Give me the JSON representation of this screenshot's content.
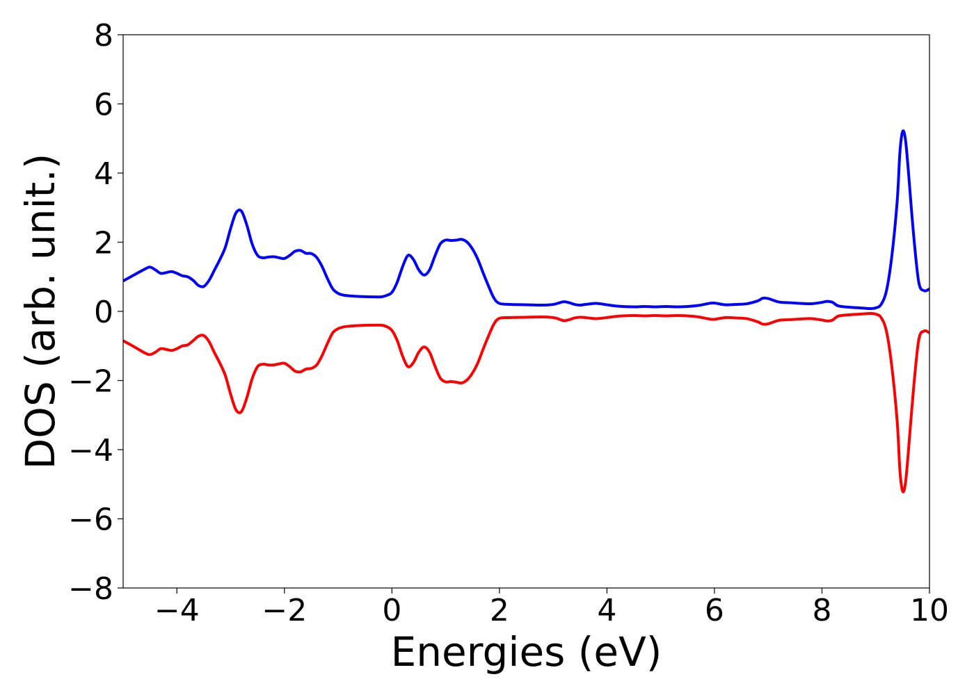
{
  "chart_data": {
    "type": "line",
    "title": "",
    "xlabel": "Energies (eV)",
    "ylabel": "DOS (arb. unit.)",
    "xlim": [
      -5,
      10
    ],
    "ylim": [
      -8,
      8
    ],
    "xticks": [
      -4,
      -2,
      0,
      2,
      4,
      6,
      8,
      10
    ],
    "xtick_labels": [
      "−4",
      "−2",
      "0",
      "2",
      "4",
      "6",
      "8",
      "10"
    ],
    "yticks": [
      -8,
      -6,
      -4,
      -2,
      0,
      2,
      4,
      6,
      8
    ],
    "ytick_labels": [
      "−8",
      "−6",
      "−4",
      "−2",
      "0",
      "2",
      "4",
      "6",
      "8"
    ],
    "grid": false,
    "legend": "none",
    "series": [
      {
        "color": "#0000ff",
        "x": [
          -5.0,
          -4.8,
          -4.6,
          -4.5,
          -4.4,
          -4.3,
          -4.2,
          -4.1,
          -4.0,
          -3.9,
          -3.8,
          -3.7,
          -3.6,
          -3.5,
          -3.4,
          -3.3,
          -3.2,
          -3.1,
          -3.0,
          -2.9,
          -2.8,
          -2.7,
          -2.6,
          -2.5,
          -2.4,
          -2.3,
          -2.2,
          -2.1,
          -2.0,
          -1.9,
          -1.8,
          -1.7,
          -1.6,
          -1.5,
          -1.4,
          -1.3,
          -1.2,
          -1.1,
          -1.0,
          -0.9,
          -0.8,
          -0.6,
          -0.4,
          -0.2,
          -0.1,
          0.0,
          0.1,
          0.2,
          0.3,
          0.4,
          0.5,
          0.6,
          0.7,
          0.8,
          0.9,
          1.0,
          1.1,
          1.2,
          1.3,
          1.4,
          1.5,
          1.6,
          1.7,
          1.8,
          1.9,
          2.0,
          2.2,
          2.5,
          2.8,
          3.0,
          3.1,
          3.2,
          3.3,
          3.4,
          3.5,
          3.6,
          3.8,
          4.0,
          4.2,
          4.5,
          4.7,
          4.9,
          5.1,
          5.3,
          5.5,
          5.7,
          5.9,
          6.0,
          6.2,
          6.4,
          6.6,
          6.8,
          6.9,
          7.0,
          7.2,
          7.4,
          7.6,
          7.8,
          8.0,
          8.1,
          8.2,
          8.3,
          8.5,
          8.7,
          8.8,
          8.9,
          9.0,
          9.1,
          9.2,
          9.3,
          9.4,
          9.45,
          9.5,
          9.55,
          9.6,
          9.7,
          9.8,
          9.9,
          10.0
        ],
        "y": [
          0.88,
          1.05,
          1.22,
          1.28,
          1.2,
          1.1,
          1.12,
          1.15,
          1.1,
          1.03,
          1.0,
          0.9,
          0.75,
          0.72,
          0.9,
          1.2,
          1.5,
          1.85,
          2.4,
          2.85,
          2.9,
          2.5,
          1.95,
          1.62,
          1.55,
          1.57,
          1.58,
          1.55,
          1.53,
          1.62,
          1.74,
          1.76,
          1.68,
          1.67,
          1.56,
          1.3,
          0.95,
          0.65,
          0.52,
          0.47,
          0.45,
          0.43,
          0.42,
          0.42,
          0.46,
          0.55,
          0.85,
          1.3,
          1.62,
          1.5,
          1.2,
          1.05,
          1.2,
          1.6,
          1.95,
          2.06,
          2.05,
          2.06,
          2.08,
          2.0,
          1.8,
          1.5,
          1.1,
          0.72,
          0.38,
          0.23,
          0.2,
          0.19,
          0.18,
          0.2,
          0.24,
          0.28,
          0.25,
          0.2,
          0.18,
          0.2,
          0.23,
          0.19,
          0.15,
          0.13,
          0.14,
          0.13,
          0.14,
          0.13,
          0.14,
          0.17,
          0.23,
          0.24,
          0.19,
          0.2,
          0.22,
          0.3,
          0.38,
          0.37,
          0.27,
          0.25,
          0.23,
          0.22,
          0.26,
          0.29,
          0.26,
          0.16,
          0.12,
          0.1,
          0.09,
          0.08,
          0.1,
          0.2,
          0.6,
          1.6,
          3.2,
          4.6,
          5.2,
          5.0,
          4.2,
          2.3,
          0.85,
          0.6,
          0.65
        ]
      },
      {
        "color": "#ff0000",
        "x": [
          -5.0,
          -4.8,
          -4.6,
          -4.5,
          -4.4,
          -4.3,
          -4.2,
          -4.1,
          -4.0,
          -3.9,
          -3.8,
          -3.7,
          -3.6,
          -3.5,
          -3.4,
          -3.3,
          -3.2,
          -3.1,
          -3.0,
          -2.9,
          -2.8,
          -2.7,
          -2.6,
          -2.5,
          -2.4,
          -2.3,
          -2.2,
          -2.1,
          -2.0,
          -1.9,
          -1.8,
          -1.7,
          -1.6,
          -1.5,
          -1.4,
          -1.3,
          -1.2,
          -1.1,
          -1.0,
          -0.9,
          -0.8,
          -0.6,
          -0.4,
          -0.2,
          -0.1,
          0.0,
          0.1,
          0.2,
          0.3,
          0.4,
          0.5,
          0.6,
          0.7,
          0.8,
          0.9,
          1.0,
          1.1,
          1.2,
          1.3,
          1.4,
          1.5,
          1.6,
          1.7,
          1.8,
          1.9,
          2.0,
          2.2,
          2.5,
          2.8,
          3.0,
          3.1,
          3.2,
          3.3,
          3.4,
          3.5,
          3.6,
          3.8,
          4.0,
          4.2,
          4.5,
          4.7,
          4.9,
          5.1,
          5.3,
          5.5,
          5.7,
          5.9,
          6.0,
          6.2,
          6.4,
          6.6,
          6.8,
          6.9,
          7.0,
          7.2,
          7.4,
          7.6,
          7.8,
          8.0,
          8.1,
          8.2,
          8.3,
          8.5,
          8.7,
          8.8,
          8.9,
          9.0,
          9.1,
          9.2,
          9.3,
          9.4,
          9.45,
          9.5,
          9.55,
          9.6,
          9.7,
          9.8,
          9.9,
          10.0
        ],
        "y": [
          -0.85,
          -1.02,
          -1.2,
          -1.25,
          -1.18,
          -1.08,
          -1.1,
          -1.13,
          -1.08,
          -1.0,
          -0.97,
          -0.85,
          -0.72,
          -0.7,
          -0.88,
          -1.2,
          -1.5,
          -1.85,
          -2.4,
          -2.85,
          -2.9,
          -2.5,
          -1.95,
          -1.6,
          -1.53,
          -1.55,
          -1.55,
          -1.52,
          -1.5,
          -1.6,
          -1.73,
          -1.75,
          -1.67,
          -1.65,
          -1.55,
          -1.28,
          -0.93,
          -0.62,
          -0.5,
          -0.45,
          -0.43,
          -0.41,
          -0.4,
          -0.4,
          -0.44,
          -0.55,
          -0.85,
          -1.3,
          -1.6,
          -1.48,
          -1.18,
          -1.03,
          -1.18,
          -1.58,
          -1.93,
          -2.04,
          -2.03,
          -2.05,
          -2.07,
          -1.98,
          -1.78,
          -1.48,
          -1.08,
          -0.7,
          -0.36,
          -0.2,
          -0.18,
          -0.17,
          -0.16,
          -0.18,
          -0.22,
          -0.27,
          -0.24,
          -0.19,
          -0.17,
          -0.18,
          -0.21,
          -0.18,
          -0.14,
          -0.12,
          -0.13,
          -0.12,
          -0.13,
          -0.12,
          -0.13,
          -0.16,
          -0.22,
          -0.23,
          -0.18,
          -0.19,
          -0.21,
          -0.3,
          -0.37,
          -0.36,
          -0.26,
          -0.24,
          -0.22,
          -0.21,
          -0.25,
          -0.28,
          -0.25,
          -0.14,
          -0.1,
          -0.08,
          -0.07,
          -0.06,
          -0.08,
          -0.18,
          -0.58,
          -1.6,
          -3.2,
          -4.6,
          -5.2,
          -5.0,
          -4.2,
          -2.3,
          -0.83,
          -0.57,
          -0.62
        ]
      }
    ]
  }
}
